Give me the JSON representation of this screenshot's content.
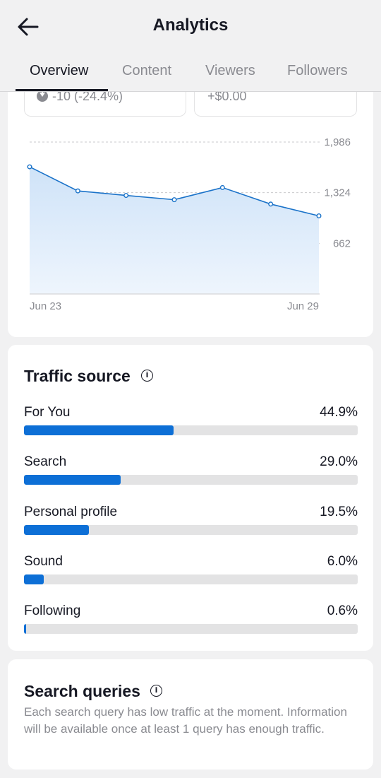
{
  "header": {
    "title": "Analytics",
    "back_icon": "arrow-left-icon"
  },
  "tabs": [
    {
      "label": "Overview",
      "active": true
    },
    {
      "label": "Content",
      "active": false
    },
    {
      "label": "Viewers",
      "active": false
    },
    {
      "label": "Followers",
      "active": false
    }
  ],
  "metrics": {
    "left_value": "-10 (-24.4%)",
    "left_icon": "down-arrow-circle-icon",
    "right_value": "+$0.00"
  },
  "chart_data": {
    "type": "area",
    "x": [
      "Jun 23",
      "Jun 24",
      "Jun 25",
      "Jun 26",
      "Jun 27",
      "Jun 28",
      "Jun 29"
    ],
    "x_tick_labels": [
      "Jun 23",
      "Jun 29"
    ],
    "series": [
      {
        "values": [
          1662,
          1347,
          1288,
          1232,
          1391,
          1175,
          1021
        ]
      }
    ],
    "y_ticks": [
      662,
      1324,
      1986
    ],
    "y_tick_labels": [
      "662",
      "1,324",
      "1,986"
    ],
    "ylim": [
      0,
      1986
    ],
    "grid": "dashed-horizontal",
    "line_color": "#1b73c9",
    "fill_color": "#d6e8fa"
  },
  "traffic_source": {
    "title": "Traffic source",
    "items": [
      {
        "label": "For You",
        "pct": "44.9%",
        "value": 44.9
      },
      {
        "label": "Search",
        "pct": "29.0%",
        "value": 29.0
      },
      {
        "label": "Personal profile",
        "pct": "19.5%",
        "value": 19.5
      },
      {
        "label": "Sound",
        "pct": "6.0%",
        "value": 6.0
      },
      {
        "label": "Following",
        "pct": "0.6%",
        "value": 0.6
      }
    ]
  },
  "search_queries": {
    "title": "Search queries",
    "text": "Each search query has low traffic at the moment. Information will be available once at least 1 query has enough traffic."
  },
  "colors": {
    "accent": "#0d6fd6",
    "background": "#f1f1f2",
    "card": "#ffffff",
    "muted": "#8a8b91"
  }
}
